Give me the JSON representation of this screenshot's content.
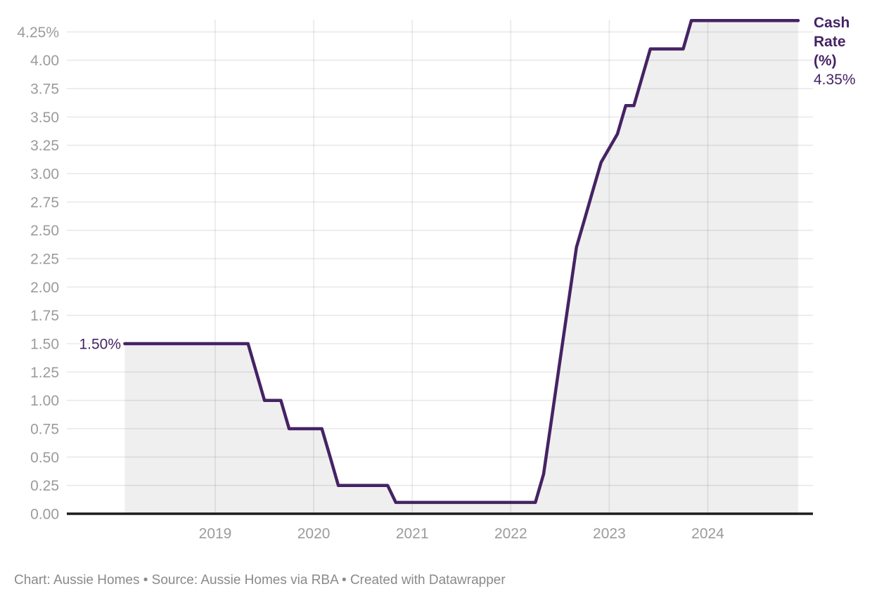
{
  "chart_data": {
    "type": "area",
    "title": "Cash Rate (%)",
    "xlabel": "",
    "ylabel": "",
    "grid": "on",
    "x_domain": [
      2018.083,
      2024.917
    ],
    "y_domain": [
      0,
      4.45
    ],
    "x_ticks": [
      {
        "t": 2019,
        "label": "2019"
      },
      {
        "t": 2020,
        "label": "2020"
      },
      {
        "t": 2021,
        "label": "2021"
      },
      {
        "t": 2022,
        "label": "2022"
      },
      {
        "t": 2023,
        "label": "2023"
      },
      {
        "t": 2024,
        "label": "2024"
      }
    ],
    "y_ticks": [
      {
        "v": 0.0,
        "label": "0.00"
      },
      {
        "v": 0.25,
        "label": "0.25"
      },
      {
        "v": 0.5,
        "label": "0.50"
      },
      {
        "v": 0.75,
        "label": "0.75"
      },
      {
        "v": 1.0,
        "label": "1.00"
      },
      {
        "v": 1.25,
        "label": "1.25"
      },
      {
        "v": 1.5,
        "label": "1.50"
      },
      {
        "v": 1.75,
        "label": "1.75"
      },
      {
        "v": 2.0,
        "label": "2.00"
      },
      {
        "v": 2.25,
        "label": "2.25"
      },
      {
        "v": 2.5,
        "label": "2.50"
      },
      {
        "v": 2.75,
        "label": "2.75"
      },
      {
        "v": 3.0,
        "label": "3.00"
      },
      {
        "v": 3.25,
        "label": "3.25"
      },
      {
        "v": 3.5,
        "label": "3.50"
      },
      {
        "v": 3.75,
        "label": "3.75"
      },
      {
        "v": 4.0,
        "label": "4.00"
      },
      {
        "v": 4.25,
        "label": "4.25%"
      }
    ],
    "series": [
      {
        "name": "Cash Rate (%)",
        "points": [
          [
            2018.083,
            1.5
          ],
          [
            2019.333,
            1.5
          ],
          [
            2019.417,
            1.25
          ],
          [
            2019.5,
            1.0
          ],
          [
            2019.667,
            1.0
          ],
          [
            2019.75,
            0.75
          ],
          [
            2020.083,
            0.75
          ],
          [
            2020.167,
            0.5
          ],
          [
            2020.25,
            0.25
          ],
          [
            2020.75,
            0.25
          ],
          [
            2020.833,
            0.1
          ],
          [
            2022.25,
            0.1
          ],
          [
            2022.333,
            0.35
          ],
          [
            2022.417,
            0.85
          ],
          [
            2022.5,
            1.35
          ],
          [
            2022.583,
            1.85
          ],
          [
            2022.667,
            2.35
          ],
          [
            2022.75,
            2.6
          ],
          [
            2022.833,
            2.85
          ],
          [
            2022.917,
            3.1
          ],
          [
            2023.083,
            3.35
          ],
          [
            2023.167,
            3.6
          ],
          [
            2023.25,
            3.6
          ],
          [
            2023.333,
            3.85
          ],
          [
            2023.417,
            4.1
          ],
          [
            2023.75,
            4.1
          ],
          [
            2023.833,
            4.35
          ],
          [
            2024.917,
            4.35
          ]
        ]
      }
    ],
    "start_label": "1.50%",
    "end_label": {
      "series": "Cash Rate (%)",
      "value": "4.35%"
    },
    "legend_position": "end-of-line"
  },
  "colors": {
    "line": "#452364",
    "area_fill": "#efefef",
    "grid": "rgba(0,0,0,0.085)",
    "baseline": "#1c1c1c",
    "axis_text": "#9b9b9b",
    "footer_text": "#8a8a8a",
    "label_halo": "#ffffff"
  },
  "footer": {
    "text": "Chart: Aussie Homes • Source: Aussie Homes via RBA • Created with Datawrapper"
  }
}
